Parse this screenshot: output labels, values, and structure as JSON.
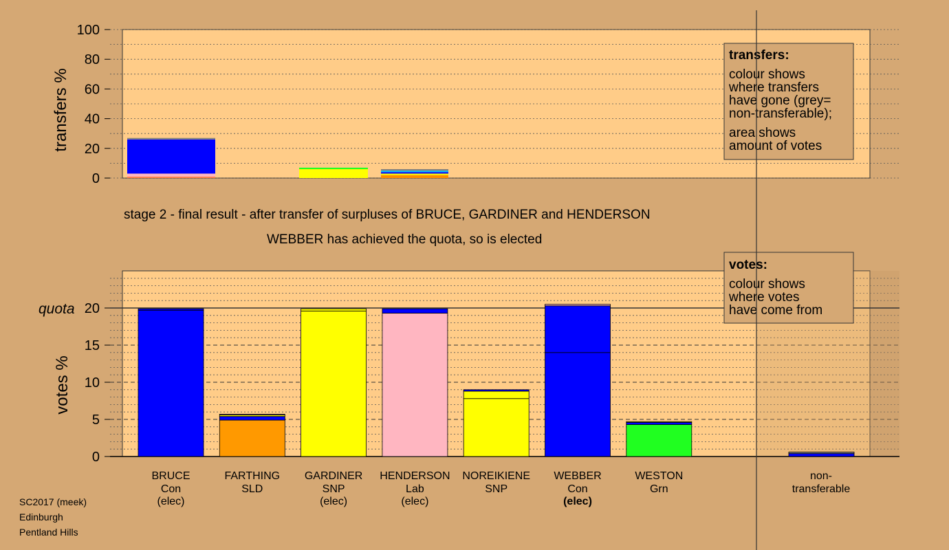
{
  "chart_data": [
    {
      "type": "bar",
      "name": "transfers",
      "ylabel": "transfers %",
      "ylim": [
        0,
        100
      ],
      "yticks": [
        0,
        20,
        40,
        60,
        80,
        100
      ],
      "x": [
        1,
        3,
        4
      ],
      "series": [
        {
          "color": "#ff7f50",
          "values": [
            1,
            0,
            0
          ]
        },
        {
          "color": "#ffb6c1",
          "values": [
            2,
            0,
            0
          ]
        },
        {
          "color": "#ff8c00",
          "values": [
            0,
            0,
            2
          ]
        },
        {
          "color": "#ffff00",
          "values": [
            0,
            6,
            1
          ]
        },
        {
          "color": "#0000ff",
          "values": [
            23,
            0,
            1
          ]
        },
        {
          "color": "#00c0ff",
          "values": [
            0,
            0,
            1
          ]
        },
        {
          "color": "#20ff20",
          "values": [
            0,
            1,
            0
          ]
        },
        {
          "color": "#808080",
          "values": [
            1,
            0,
            1
          ]
        }
      ],
      "legend": {
        "title": "transfers:",
        "lines": [
          "colour shows",
          "where transfers",
          "have gone (grey=",
          "non-transferable);",
          "area shows",
          "amount of votes"
        ]
      }
    },
    {
      "type": "bar",
      "name": "votes",
      "ylabel": "votes %",
      "ylim": [
        0,
        25
      ],
      "yticks": [
        0,
        5,
        10,
        15,
        20
      ],
      "quota": 20,
      "quota_label": "quota",
      "categories": [
        {
          "name": "BRUCE",
          "party": "Con",
          "status": "(elec)",
          "bold_status": false,
          "segments": [
            {
              "value": 19.7,
              "color": "#0000ff"
            },
            {
              "value": 0.2,
              "color": "#0000ff"
            }
          ]
        },
        {
          "name": "FARTHING",
          "party": "SLD",
          "status": "",
          "bold_status": false,
          "segments": [
            {
              "value": 4.9,
              "color": "#ff9900"
            },
            {
              "value": 0.5,
              "color": "#0000ff"
            },
            {
              "value": 0.2,
              "color": "#ffff00"
            },
            {
              "value": 0.1,
              "color": "#ffb6c1"
            }
          ]
        },
        {
          "name": "GARDINER",
          "party": "SNP",
          "status": "(elec)",
          "bold_status": false,
          "segments": [
            {
              "value": 19.6,
              "color": "#ffff00"
            },
            {
              "value": 0.3,
              "color": "#ffff00"
            }
          ]
        },
        {
          "name": "HENDERSON",
          "party": "Lab",
          "status": "(elec)",
          "bold_status": false,
          "segments": [
            {
              "value": 19.3,
              "color": "#ffb6c1"
            },
            {
              "value": 0.6,
              "color": "#0000ff"
            }
          ]
        },
        {
          "name": "NOREIKIENE",
          "party": "SNP",
          "status": "",
          "bold_status": false,
          "segments": [
            {
              "value": 7.8,
              "color": "#ffff00"
            },
            {
              "value": 1.0,
              "color": "#ffff00"
            },
            {
              "value": 0.2,
              "color": "#0000ff"
            }
          ]
        },
        {
          "name": "WEBBER",
          "party": "Con",
          "status": "(elec)",
          "bold_status": true,
          "segments": [
            {
              "value": 14.0,
              "color": "#0000ff"
            },
            {
              "value": 6.3,
              "color": "#0000ff"
            },
            {
              "value": 0.2,
              "color": "#ffb6c1"
            }
          ]
        },
        {
          "name": "WESTON",
          "party": "Grn",
          "status": "",
          "bold_status": false,
          "segments": [
            {
              "value": 4.3,
              "color": "#20ff20"
            },
            {
              "value": 0.3,
              "color": "#0000ff"
            },
            {
              "value": 0.1,
              "color": "#ffff00"
            }
          ]
        }
      ],
      "nontransferable": {
        "label1": "non-",
        "label2": "transferable",
        "segments": [
          {
            "value": 0.4,
            "color": "#0000ff"
          },
          {
            "value": 0.2,
            "color": "#808080"
          }
        ]
      },
      "legend": {
        "title": "votes:",
        "lines": [
          "colour shows",
          "where votes",
          "have come from"
        ]
      }
    }
  ],
  "captions": {
    "stage": "stage 2 - final result - after transfer of surpluses of BRUCE, GARDINER and HENDERSON",
    "result": "WEBBER has achieved the quota, so is elected"
  },
  "footer": {
    "line1": "SC2017 (meek)",
    "line2": "Edinburgh",
    "line3": "Pentland Hills"
  }
}
